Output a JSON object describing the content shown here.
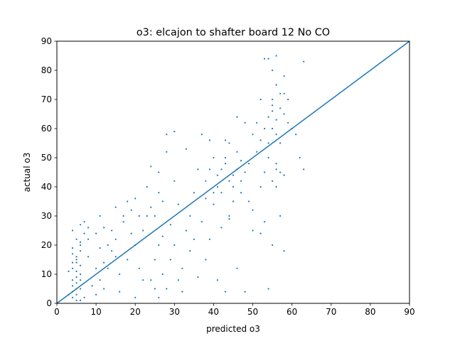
{
  "chart_data": {
    "type": "scatter",
    "title": "o3: elcajon to shafter board 12 No CO",
    "xlabel": "predicted o3",
    "ylabel": "actual o3",
    "xlim": [
      0,
      90
    ],
    "ylim": [
      0,
      90
    ],
    "xticks": [
      "0",
      "10",
      "20",
      "30",
      "40",
      "50",
      "60",
      "70",
      "80",
      "90"
    ],
    "yticks": [
      "0",
      "10",
      "20",
      "30",
      "40",
      "50",
      "60",
      "70",
      "80",
      "90"
    ],
    "grid": false,
    "legend": "none",
    "color": "#1f77b4",
    "reference_line": {
      "x": [
        0,
        90
      ],
      "y": [
        0,
        90
      ]
    },
    "series": [
      {
        "points": [
          [
            4,
            2
          ],
          [
            5,
            5
          ],
          [
            6,
            8
          ],
          [
            4,
            12
          ],
          [
            5,
            15
          ],
          [
            6,
            18
          ],
          [
            5,
            22
          ],
          [
            4,
            25
          ],
          [
            6,
            27
          ],
          [
            5,
            3
          ],
          [
            4,
            6
          ],
          [
            6,
            10
          ],
          [
            5,
            14
          ],
          [
            4,
            17
          ],
          [
            6,
            20
          ],
          [
            5,
            1
          ],
          [
            4,
            4
          ],
          [
            7,
            24
          ],
          [
            5,
            9
          ],
          [
            3,
            11
          ],
          [
            6,
            13
          ],
          [
            5,
            16
          ],
          [
            4,
            19
          ],
          [
            6,
            21
          ],
          [
            7,
            2
          ],
          [
            5,
            7
          ],
          [
            3,
            3
          ],
          [
            7,
            28
          ],
          [
            4,
            8
          ],
          [
            6,
            5
          ],
          [
            5,
            11
          ],
          [
            4,
            14
          ],
          [
            6,
            1
          ],
          [
            8,
            22
          ],
          [
            8,
            16
          ],
          [
            8,
            26
          ],
          [
            10,
            3
          ],
          [
            11,
            8
          ],
          [
            12,
            14
          ],
          [
            11,
            19
          ],
          [
            10,
            24
          ],
          [
            12,
            5
          ],
          [
            13,
            12
          ],
          [
            14,
            18
          ],
          [
            15,
            22
          ],
          [
            16,
            10
          ],
          [
            17,
            28
          ],
          [
            15,
            33
          ],
          [
            18,
            15
          ],
          [
            20,
            20
          ],
          [
            19,
            32
          ],
          [
            21,
            12
          ],
          [
            22,
            25
          ],
          [
            23,
            30
          ],
          [
            20,
            36
          ],
          [
            24,
            8
          ],
          [
            25,
            15
          ],
          [
            26,
            20
          ],
          [
            25,
            30
          ],
          [
            27,
            35
          ],
          [
            26,
            45
          ],
          [
            28,
            52
          ],
          [
            26,
            2
          ],
          [
            27,
            10
          ],
          [
            28,
            5
          ],
          [
            30,
            20
          ],
          [
            29,
            27
          ],
          [
            31,
            34
          ],
          [
            30,
            42
          ],
          [
            32,
            12
          ],
          [
            33,
            25
          ],
          [
            34,
            30
          ],
          [
            35,
            38
          ],
          [
            34,
            18
          ],
          [
            36,
            46
          ],
          [
            37,
            28
          ],
          [
            38,
            42
          ],
          [
            39,
            22
          ],
          [
            40,
            34
          ],
          [
            41,
            44
          ],
          [
            40,
            50
          ],
          [
            42,
            38
          ],
          [
            43,
            48
          ],
          [
            44,
            30
          ],
          [
            45,
            40
          ],
          [
            44,
            55
          ],
          [
            46,
            52
          ],
          [
            47,
            38
          ],
          [
            48,
            45
          ],
          [
            49,
            35
          ],
          [
            50,
            58
          ],
          [
            50,
            25
          ],
          [
            52,
            40
          ],
          [
            51,
            62
          ],
          [
            53,
            45
          ],
          [
            52,
            70
          ],
          [
            54,
            50
          ],
          [
            55,
            60
          ],
          [
            55,
            68
          ],
          [
            56,
            75
          ],
          [
            55,
            80
          ],
          [
            54,
            84
          ],
          [
            56,
            46
          ],
          [
            57,
            55
          ],
          [
            58,
            65
          ],
          [
            57,
            72
          ],
          [
            58,
            78
          ],
          [
            59,
            62
          ],
          [
            56,
            40
          ],
          [
            57,
            30
          ],
          [
            55,
            20
          ],
          [
            58,
            18
          ],
          [
            60,
            60
          ],
          [
            61,
            58
          ],
          [
            62,
            50
          ],
          [
            63,
            46
          ],
          [
            63,
            83
          ],
          [
            56,
            85
          ],
          [
            53,
            84
          ],
          [
            56,
            63
          ],
          [
            54,
            55
          ],
          [
            57,
            45
          ],
          [
            55,
            42
          ],
          [
            58,
            44
          ],
          [
            56,
            48
          ],
          [
            55,
            70
          ],
          [
            57,
            67
          ],
          [
            58,
            72
          ],
          [
            59,
            70
          ],
          [
            56,
            58
          ],
          [
            52,
            24
          ],
          [
            54,
            5
          ],
          [
            48,
            62
          ],
          [
            46,
            64
          ],
          [
            43,
            56
          ],
          [
            41,
            8
          ],
          [
            43,
            4
          ],
          [
            28,
            58
          ],
          [
            30,
            59
          ],
          [
            33,
            53
          ],
          [
            37,
            58
          ],
          [
            39,
            56
          ],
          [
            44,
            29
          ],
          [
            45,
            35
          ],
          [
            47,
            49
          ],
          [
            50,
            32
          ],
          [
            53,
            28
          ],
          [
            46,
            12
          ],
          [
            48,
            4
          ],
          [
            20,
            2
          ],
          [
            22,
            8
          ],
          [
            25,
            5
          ],
          [
            19,
            24
          ],
          [
            17,
            30
          ],
          [
            23,
            40
          ],
          [
            24,
            47
          ],
          [
            35,
            22
          ],
          [
            38,
            15
          ],
          [
            42,
            26
          ],
          [
            36,
            9
          ],
          [
            32,
            4
          ],
          [
            29,
            15
          ],
          [
            31,
            8
          ],
          [
            27,
            23
          ],
          [
            26,
            38
          ],
          [
            24,
            33
          ],
          [
            21,
            30
          ],
          [
            18,
            35
          ],
          [
            14,
            25
          ],
          [
            13,
            20
          ],
          [
            12,
            26
          ],
          [
            11,
            30
          ],
          [
            9,
            6
          ],
          [
            10,
            12
          ],
          [
            15,
            16
          ],
          [
            16,
            4
          ],
          [
            44,
            42
          ],
          [
            42,
            46
          ],
          [
            41,
            40
          ],
          [
            40,
            38
          ],
          [
            39,
            46
          ],
          [
            38,
            36
          ],
          [
            43,
            50
          ],
          [
            45,
            44
          ],
          [
            46,
            46
          ],
          [
            47,
            42
          ],
          [
            49,
            48
          ],
          [
            51,
            52
          ],
          [
            52,
            56
          ],
          [
            53,
            60
          ],
          [
            54,
            64
          ],
          [
            55,
            66
          ]
        ]
      }
    ]
  }
}
